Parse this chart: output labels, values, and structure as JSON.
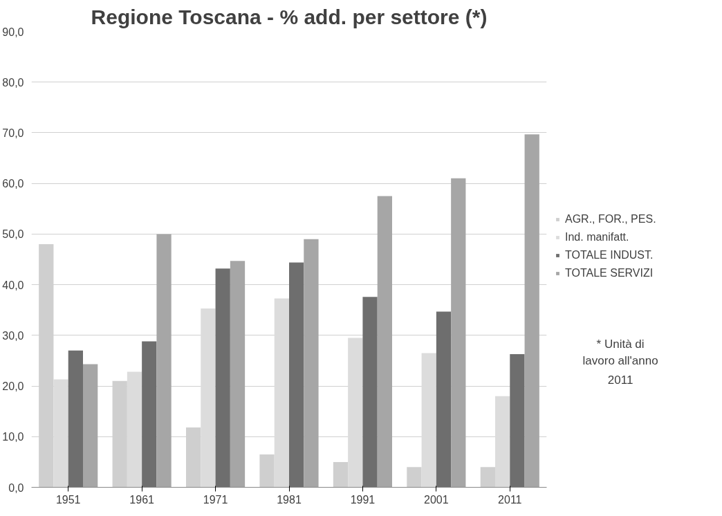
{
  "chart_data": {
    "type": "bar",
    "title": "Regione Toscana - % add. per settore (*)",
    "categories": [
      "1951",
      "1961",
      "1971",
      "1981",
      "1991",
      "2001",
      "2011"
    ],
    "series": [
      {
        "name": "AGR., FOR., PES.",
        "color": "#cfcfcf",
        "values": [
          48.0,
          21.0,
          11.8,
          6.5,
          5.0,
          4.0,
          4.0
        ]
      },
      {
        "name": "Ind. manifatt.",
        "color": "#dcdcdc",
        "values": [
          21.3,
          22.8,
          35.3,
          37.3,
          29.5,
          26.5,
          18.0
        ]
      },
      {
        "name": "TOTALE INDUST.",
        "color": "#6e6e6e",
        "values": [
          27.0,
          28.8,
          43.2,
          44.4,
          37.6,
          34.7,
          26.3
        ]
      },
      {
        "name": "TOTALE SERVIZI",
        "color": "#a6a6a6",
        "values": [
          24.3,
          50.0,
          44.7,
          49.0,
          57.5,
          61.0,
          69.7
        ]
      }
    ],
    "ylim": [
      0,
      90
    ],
    "yticks": [
      {
        "value": 0,
        "label": "0,0"
      },
      {
        "value": 10,
        "label": "10,0"
      },
      {
        "value": 20,
        "label": "20,0"
      },
      {
        "value": 30,
        "label": "30,0"
      },
      {
        "value": 40,
        "label": "40,0"
      },
      {
        "value": 50,
        "label": "50,0"
      },
      {
        "value": 60,
        "label": "60,0"
      },
      {
        "value": 70,
        "label": "70,0"
      },
      {
        "value": 80,
        "label": "80,0"
      },
      {
        "value": 90,
        "label": "90,0"
      }
    ],
    "grid": "y",
    "legend": "right",
    "annotations": [
      "* Unità di lavoro all'anno 2011"
    ]
  }
}
